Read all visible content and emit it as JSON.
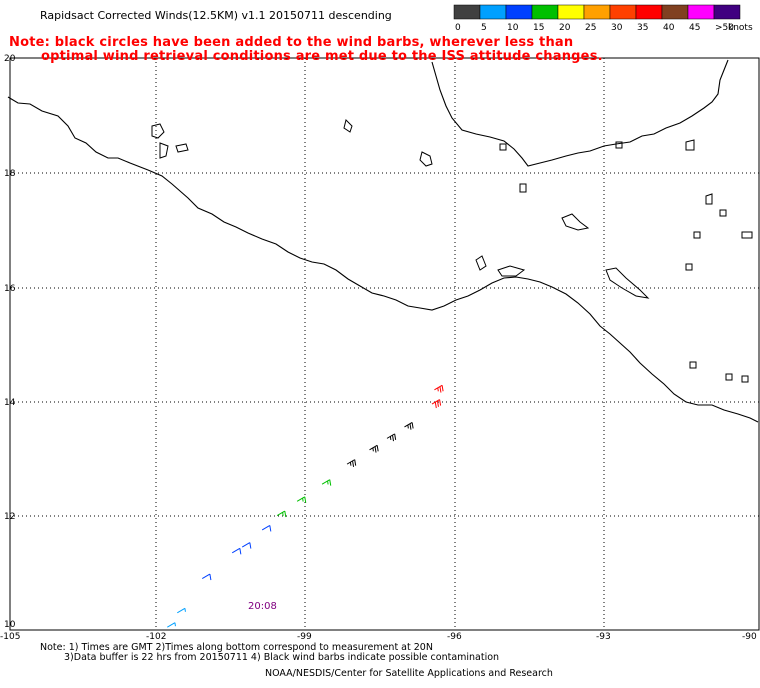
{
  "title": "Rapidsact Corrected Winds(12.5KM) v1.1 20150711 descending",
  "note_line1": "Note: black circles have been added to the wind barbs, wherever less than",
  "note_line2": "optimal wind retrieval conditions are met due to the ISS attitude changes.",
  "legend": {
    "unit": "knots",
    "bins": [
      {
        "label": "0",
        "color": "#404040"
      },
      {
        "label": "5",
        "color": "#00a0ff"
      },
      {
        "label": "10",
        "color": "#0040ff"
      },
      {
        "label": "15",
        "color": "#00c000"
      },
      {
        "label": "20",
        "color": "#ffff00"
      },
      {
        "label": "25",
        "color": "#ffa000"
      },
      {
        "label": "30",
        "color": "#ff4000"
      },
      {
        "label": "35",
        "color": "#ff0000"
      },
      {
        "label": "40",
        "color": "#804020"
      },
      {
        "label": "45",
        "color": "#ff00ff"
      },
      {
        "label": ">50",
        "color": "#400080"
      }
    ]
  },
  "lat_labels": [
    "20",
    "18",
    "16",
    "14",
    "12",
    "10"
  ],
  "lon_labels": [
    "-105",
    "-102",
    "-99",
    "-96",
    "-93",
    "-90"
  ],
  "time_label": "20:08",
  "footer_line1": "Note: 1) Times are GMT 2)Times along bottom correspond to measurement at 20N",
  "footer_line2": "3)Data buffer is 22 hrs from 20150711 4) Black wind barbs indicate possible contamination",
  "footer_line3": "NOAA/NESDIS/Center for Satellite Applications and Research",
  "wind_barbs": [
    {
      "lon": -101.85,
      "lat": 10.05,
      "speed_kt": 5,
      "color": "#00a0ff"
    },
    {
      "lon": -101.65,
      "lat": 10.3,
      "speed_kt": 5,
      "color": "#00a0ff"
    },
    {
      "lon": -101.15,
      "lat": 10.9,
      "speed_kt": 10,
      "color": "#0040ff"
    },
    {
      "lon": -100.55,
      "lat": 11.35,
      "speed_kt": 10,
      "color": "#0040ff"
    },
    {
      "lon": -100.35,
      "lat": 11.45,
      "speed_kt": 10,
      "color": "#0040ff"
    },
    {
      "lon": -99.95,
      "lat": 11.75,
      "speed_kt": 10,
      "color": "#0040ff"
    },
    {
      "lon": -99.65,
      "lat": 12.0,
      "speed_kt": 15,
      "color": "#00c000"
    },
    {
      "lon": -99.25,
      "lat": 12.25,
      "speed_kt": 15,
      "color": "#00c000"
    },
    {
      "lon": -98.75,
      "lat": 12.55,
      "speed_kt": 15,
      "color": "#00c000"
    },
    {
      "lon": -98.25,
      "lat": 12.9,
      "speed_kt": 25,
      "color": "#000000"
    },
    {
      "lon": -97.8,
      "lat": 13.15,
      "speed_kt": 25,
      "color": "#000000"
    },
    {
      "lon": -97.45,
      "lat": 13.35,
      "speed_kt": 25,
      "color": "#000000"
    },
    {
      "lon": -97.1,
      "lat": 13.55,
      "speed_kt": 25,
      "color": "#000000"
    },
    {
      "lon": -96.55,
      "lat": 13.95,
      "speed_kt": 30,
      "color": "#ff0000"
    },
    {
      "lon": -96.5,
      "lat": 14.2,
      "speed_kt": 25,
      "color": "#ff0000"
    }
  ]
}
